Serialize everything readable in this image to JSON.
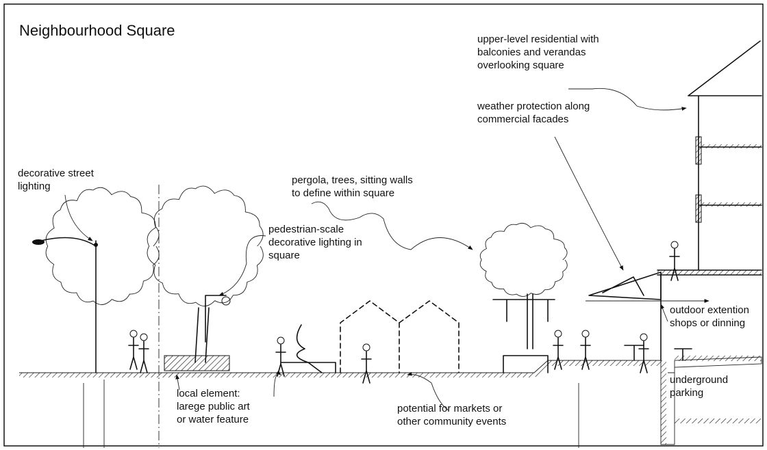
{
  "title": "Neighbourhood Square",
  "annotations": [
    {
      "lines": [
        "upper-level residential with",
        "balconies and verandas",
        "overlooking square"
      ]
    },
    {
      "lines": [
        "weather protection along",
        "commercial facades"
      ]
    },
    {
      "lines": [
        "decorative street",
        "lighting"
      ]
    },
    {
      "lines": [
        "pergola, trees, sitting walls",
        "to define within square"
      ]
    },
    {
      "lines": [
        "pedestrian-scale",
        "decorative lighting in",
        "square"
      ]
    },
    {
      "lines": [
        "outdoor extention",
        "shops or dinning"
      ]
    },
    {
      "lines": [
        "underground",
        "parking"
      ]
    },
    {
      "lines": [
        "local element:",
        "larege public art",
        "or water feature"
      ]
    },
    {
      "lines": [
        "potential for markets or",
        "other community events"
      ]
    }
  ]
}
